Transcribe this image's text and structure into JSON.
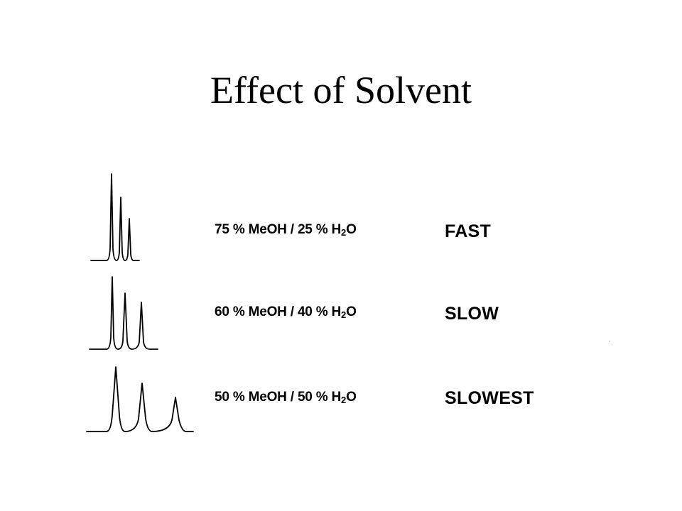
{
  "title": "Effect of Solvent",
  "rows": [
    {
      "meoh": "75 % MeOH /",
      "water_prefix": "25 % H",
      "water_sub": "2",
      "water_suffix": "O",
      "speed": "FAST"
    },
    {
      "meoh": "60 % MeOH /",
      "water_prefix": "40 % H",
      "water_sub": "2",
      "water_suffix": "O",
      "speed": "SLOW"
    },
    {
      "meoh": "50 % MeOH /",
      "water_prefix": "50 % H",
      "water_sub": "2",
      "water_suffix": "O",
      "speed": "SLOWEST"
    }
  ]
}
